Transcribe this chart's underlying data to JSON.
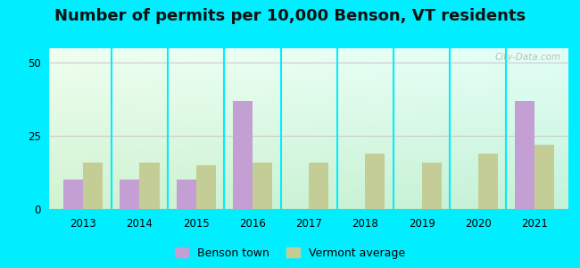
{
  "title": "Number of permits per 10,000 Benson, VT residents",
  "years": [
    2013,
    2014,
    2015,
    2016,
    2017,
    2018,
    2019,
    2020,
    2021
  ],
  "benson": [
    10,
    10,
    10,
    37,
    0,
    0,
    0,
    0,
    37
  ],
  "vermont": [
    16,
    16,
    15,
    16,
    16,
    19,
    16,
    19,
    22
  ],
  "benson_color": "#c49fd4",
  "vermont_color": "#c5cd96",
  "ylim": [
    0,
    55
  ],
  "yticks": [
    0,
    25,
    50
  ],
  "background_outer": "#00eeff",
  "title_fontsize": 13,
  "watermark": "City-Data.com",
  "bar_width": 0.35
}
